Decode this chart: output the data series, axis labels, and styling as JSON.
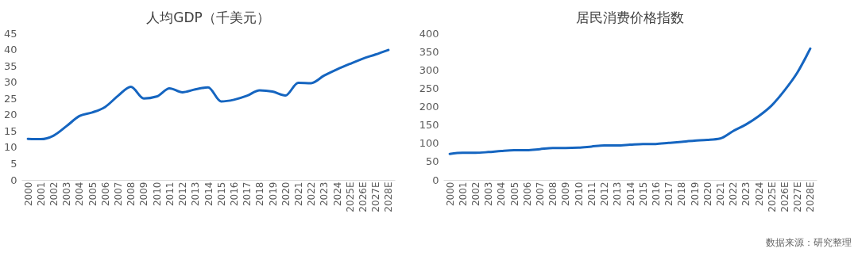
{
  "chart_data": [
    {
      "type": "line",
      "title": "人均GDP（千美元）",
      "categories": [
        "2000",
        "2001",
        "2002",
        "2003",
        "2004",
        "2005",
        "2006",
        "2007",
        "2008",
        "2009",
        "2010",
        "2011",
        "2012",
        "2013",
        "2014",
        "2015",
        "2016",
        "2017",
        "2018",
        "2019",
        "2020",
        "2021",
        "2022",
        "2023",
        "2024",
        "2025E",
        "2026E",
        "2027E",
        "2028E"
      ],
      "series": [
        {
          "color": "#1565c0",
          "values": [
            12.6,
            12.5,
            13.6,
            16.5,
            19.6,
            20.7,
            22.4,
            25.8,
            28.6,
            25.0,
            25.6,
            28.1,
            26.9,
            27.8,
            28.4,
            24.1,
            24.6,
            25.8,
            27.5,
            27.1,
            25.9,
            29.8,
            29.7,
            32.0,
            33.9,
            35.6,
            37.2,
            38.5,
            39.9
          ]
        }
      ],
      "ylim": [
        0,
        45
      ],
      "yticks": [
        0,
        5,
        10,
        15,
        20,
        25,
        30,
        35,
        40,
        45
      ],
      "grid": false
    },
    {
      "type": "line",
      "title": "居民消费价格指数",
      "categories": [
        "2000",
        "2001",
        "2002",
        "2003",
        "2004",
        "2005",
        "2006",
        "2007",
        "2008",
        "2009",
        "2010",
        "2011",
        "2012",
        "2013",
        "2014",
        "2015",
        "2016",
        "2017",
        "2018",
        "2019",
        "2020",
        "2021",
        "2022",
        "2023",
        "2024",
        "2025E",
        "2026E",
        "2027E",
        "2028E"
      ],
      "series": [
        {
          "color": "#1565c0",
          "values": [
            71,
            74,
            74,
            76,
            79,
            81,
            81,
            84,
            87,
            87,
            88,
            91,
            94,
            94,
            96,
            98,
            98,
            101,
            104,
            107,
            109,
            113,
            133,
            151,
            174,
            203,
            244,
            293,
            358
          ]
        }
      ],
      "ylim": [
        0,
        400
      ],
      "yticks": [
        0,
        50,
        100,
        150,
        200,
        250,
        300,
        350,
        400
      ],
      "grid": false,
      "annotations": [
        "数据来源：研究整理"
      ]
    }
  ]
}
